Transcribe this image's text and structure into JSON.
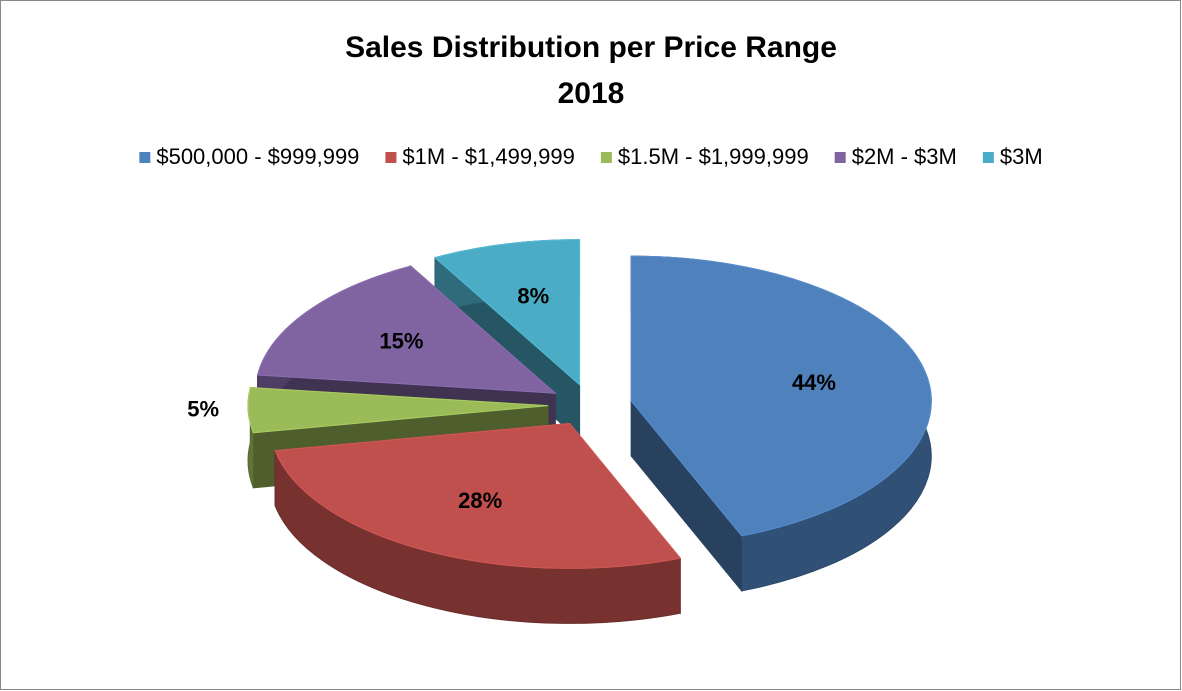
{
  "chart_data": {
    "type": "pie3d",
    "title": "Sales Distribution per Price Range",
    "subtitle": "2018",
    "categories": [
      "$500,000 - $999,999",
      "$1M - $1,499,999",
      "$1.5M - $1,999,999",
      "$2M - $3M",
      "$3M"
    ],
    "values": [
      44,
      28,
      5,
      15,
      8
    ],
    "value_labels": [
      "44%",
      "28%",
      "5%",
      "15%",
      "8%"
    ],
    "colors": [
      "#4f81bd",
      "#c0504d",
      "#9bbb59",
      "#8064a2",
      "#4bacc6"
    ],
    "legend": "top"
  }
}
